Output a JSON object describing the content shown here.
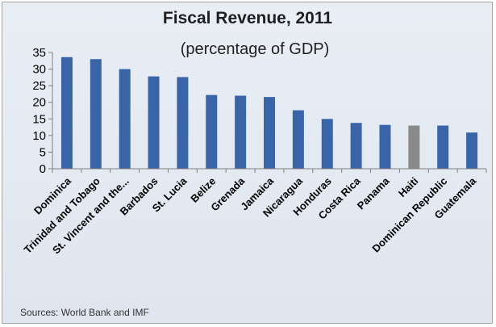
{
  "chart_data": {
    "type": "bar",
    "title": "Fiscal Revenue, 2011",
    "subtitle": "(percentage of GDP)",
    "xlabel": "",
    "ylabel": "",
    "ylim": [
      0,
      35
    ],
    "yticks": [
      0,
      5,
      10,
      15,
      20,
      25,
      30,
      35
    ],
    "grid": false,
    "legend": "none",
    "categories": [
      "Dominica",
      "Trinidad and Tobago",
      "St. Vincent and the...",
      "Barbados",
      "St. Lucia",
      "Belize",
      "Grenada",
      "Jamaica",
      "Nicaragua",
      "Honduras",
      "Costa Rica",
      "Panama",
      "Haiti",
      "Dominican Republic",
      "Guatemala"
    ],
    "values": [
      33.6,
      33.0,
      30.0,
      27.8,
      27.6,
      22.2,
      22.0,
      21.6,
      17.6,
      15.0,
      13.8,
      13.2,
      13.0,
      13.0,
      10.9
    ],
    "colors": {
      "default": "#3a64a8",
      "highlight": "#8a8a8a",
      "highlight_category": "Haiti",
      "background": "#e4eaf2"
    },
    "source": "Sources: World Bank and IMF"
  }
}
